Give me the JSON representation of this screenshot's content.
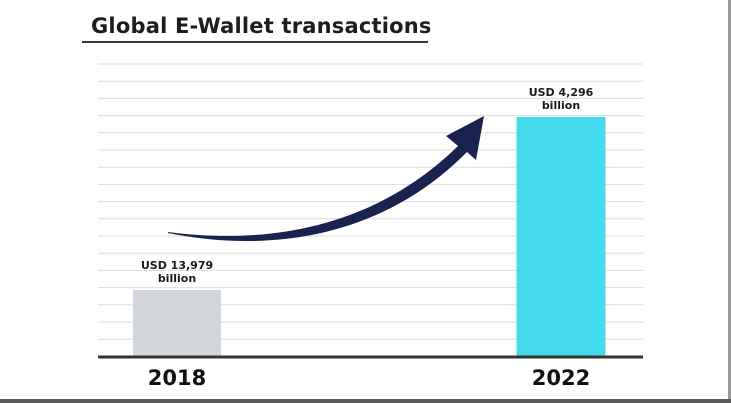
{
  "chart_data": {
    "type": "bar",
    "title": "Global E-Wallet transactions",
    "categories": [
      "2018",
      "2022"
    ],
    "values": [
      13979,
      4296
    ],
    "data_labels": [
      [
        "USD 13,979",
        "billion"
      ],
      [
        "USD 4,296",
        "billion"
      ]
    ],
    "grid": true,
    "legend": "none",
    "annotations": [
      {
        "type": "growth-arrow",
        "from": "2018",
        "to": "2022",
        "color": "#1a2350"
      }
    ],
    "colors": {
      "2018": "#d2d5d9",
      "2022": "#44dbec",
      "gridline": "#dcdcdc",
      "baseline": "#333333",
      "arrow": "#1a2350"
    }
  }
}
